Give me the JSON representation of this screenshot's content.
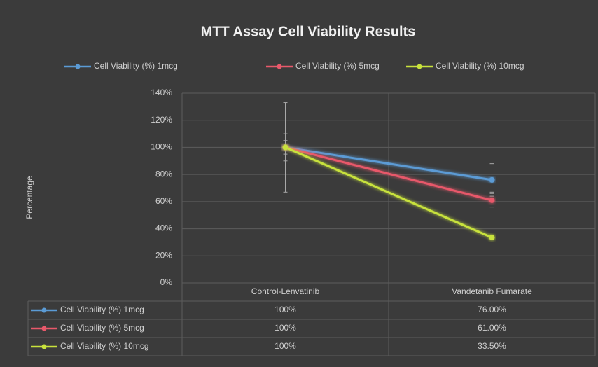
{
  "chart_data": {
    "type": "line",
    "title": "MTT Assay Cell Viability Results",
    "y_label": "Percentage",
    "categories": [
      "Control-Lenvatinib",
      "Vandetanib Fumarate"
    ],
    "ylim": [
      0,
      140
    ],
    "yticks": [
      {
        "value": 0,
        "label": "0%"
      },
      {
        "value": 20,
        "label": "20%"
      },
      {
        "value": 40,
        "label": "40%"
      },
      {
        "value": 60,
        "label": "60%"
      },
      {
        "value": 80,
        "label": "80%"
      },
      {
        "value": 100,
        "label": "100%"
      },
      {
        "value": 120,
        "label": "120%"
      },
      {
        "value": 140,
        "label": "140%"
      }
    ],
    "grid": true,
    "legend": "top",
    "series": [
      {
        "name": "Cell Viability (%) 1mcg",
        "color": "#5b9bd5",
        "values": [
          100,
          76
        ],
        "value_labels": [
          "100%",
          "76.00%"
        ],
        "errors": [
          33,
          12
        ]
      },
      {
        "name": "Cell Viability (%) 5mcg",
        "color": "#e8596b",
        "values": [
          100,
          61
        ],
        "value_labels": [
          "100%",
          "61.00%"
        ],
        "errors": [
          10,
          5
        ]
      },
      {
        "name": "Cell Viability (%) 10mcg",
        "color": "#c8e23c",
        "values": [
          100,
          33.5
        ],
        "value_labels": [
          "100%",
          "33.50%"
        ],
        "errors": [
          5,
          33.5
        ]
      }
    ]
  }
}
